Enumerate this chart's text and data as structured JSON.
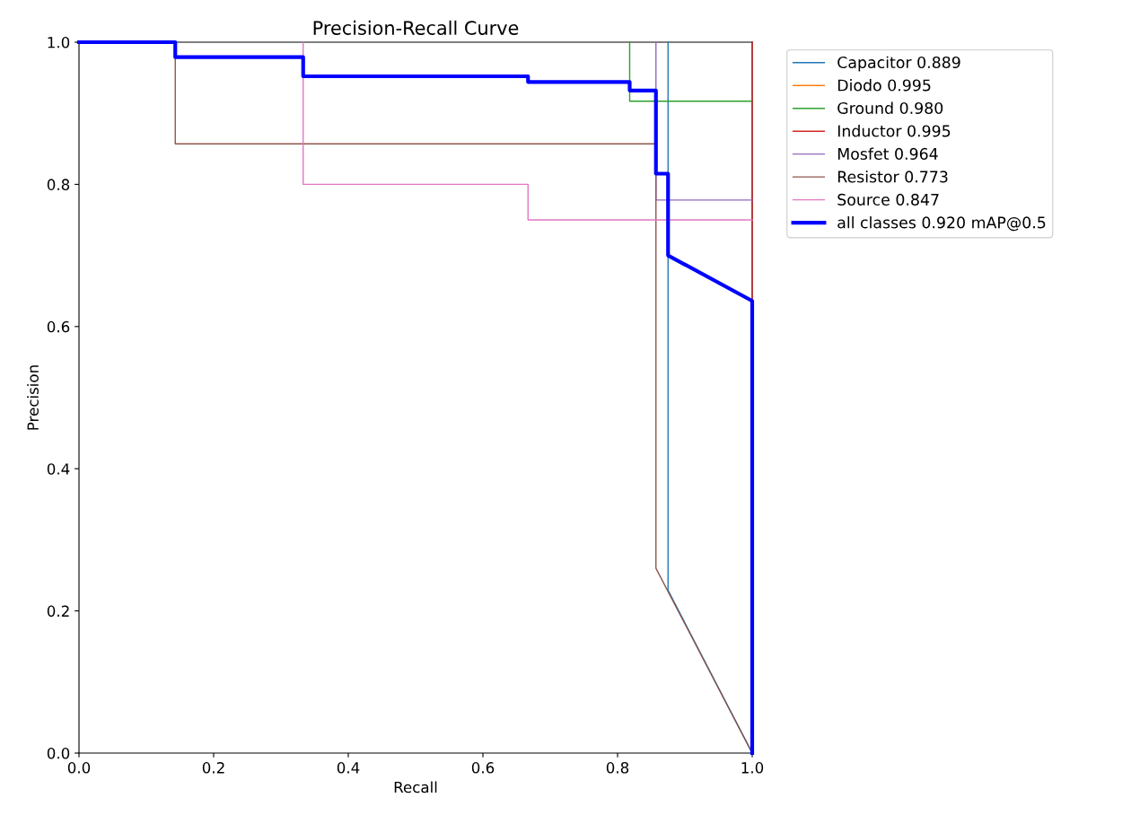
{
  "chart_data": {
    "type": "line",
    "title": "Precision-Recall Curve",
    "xlabel": "Recall",
    "ylabel": "Precision",
    "xlim": [
      0,
      1
    ],
    "ylim": [
      0,
      1
    ],
    "xticks": [
      {
        "value": 0,
        "label": "0.0"
      },
      0.2,
      0.4,
      0.6,
      0.8,
      {
        "value": 1,
        "label": "1.0"
      }
    ],
    "yticks": [
      {
        "value": 0,
        "label": "0.0"
      },
      0.2,
      0.4,
      0.6,
      0.8,
      {
        "value": 1,
        "label": "1.0"
      }
    ],
    "grid": false,
    "legend": "right",
    "marker": "none",
    "line_style": "solid",
    "series": [
      {
        "name": "Capacitor 0.889",
        "color": "#1f77b4",
        "x": [
          0.875,
          0.875,
          1
        ],
        "values": [
          1,
          0.229,
          0
        ]
      },
      {
        "name": "Diodo 0.995",
        "color": "#ff7f0e"
      },
      {
        "name": "Ground 0.980",
        "color": "#2ca02c",
        "x": [
          0.818,
          0.818,
          1
        ],
        "values": [
          1,
          0.917,
          0.917
        ]
      },
      {
        "name": "Inductor 0.995",
        "color": "#d62728",
        "x": [
          1,
          1
        ],
        "values": [
          1,
          0.636
        ]
      },
      {
        "name": "Mosfet 0.964",
        "color": "#9467bd",
        "x": [
          0.857,
          0.857,
          1
        ],
        "values": [
          1,
          0.778,
          0.778
        ]
      },
      {
        "name": "Resistor 0.773",
        "color": "#8c564b",
        "x": [
          0.143,
          0.143,
          0.857,
          0.857,
          1
        ],
        "values": [
          1,
          0.857,
          0.857,
          0.26,
          0
        ]
      },
      {
        "name": "Source 0.847",
        "color": "#e377c2",
        "x": [
          0.333,
          0.333,
          0.667,
          0.667,
          1
        ],
        "values": [
          1,
          0.8,
          0.8,
          0.75,
          0.75
        ]
      },
      {
        "name": "all classes 0.920 mAP@0.5",
        "color": "#0000ff",
        "x": [
          0,
          0.143,
          0.143,
          0.333,
          0.333,
          0.667,
          0.667,
          0.818,
          0.818,
          0.857,
          0.857,
          0.875,
          0.875,
          1,
          1
        ],
        "values": [
          1,
          1,
          0.979,
          0.979,
          0.952,
          0.952,
          0.944,
          0.944,
          0.932,
          0.932,
          0.815,
          0.815,
          0.7,
          0.636,
          0
        ]
      }
    ]
  }
}
